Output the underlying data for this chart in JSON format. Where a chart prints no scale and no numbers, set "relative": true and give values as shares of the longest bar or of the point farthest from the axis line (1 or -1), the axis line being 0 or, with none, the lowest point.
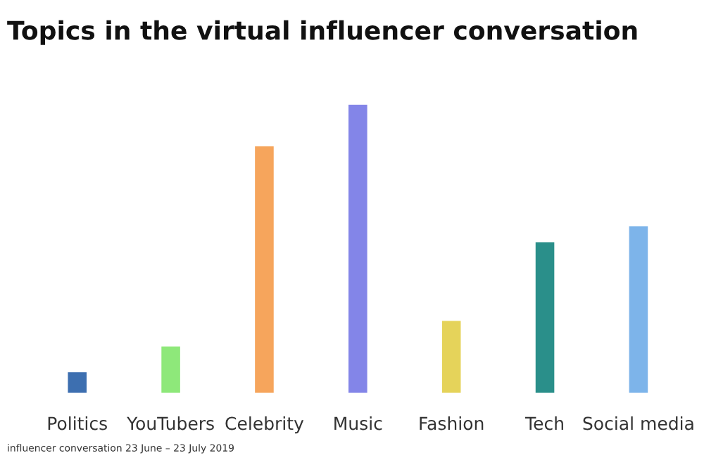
{
  "chart_data": {
    "type": "bar",
    "title": "Topics in the virtual influencer conversation",
    "categories": [
      "Politics",
      "YouTubers",
      "Celebrity",
      "Music",
      "Fashion",
      "Tech",
      "Social media"
    ],
    "values": [
      0.072,
      0.161,
      0.856,
      1,
      0.25,
      0.522,
      0.578
    ],
    "colors": [
      "#3d6fb0",
      "#8ee87a",
      "#f6a55c",
      "#8385e8",
      "#e5d35a",
      "#2a8f8a",
      "#7db4ea"
    ],
    "relative": true,
    "annotations": [
      "influencer conversation 23 June – 23 July 2019"
    ]
  }
}
